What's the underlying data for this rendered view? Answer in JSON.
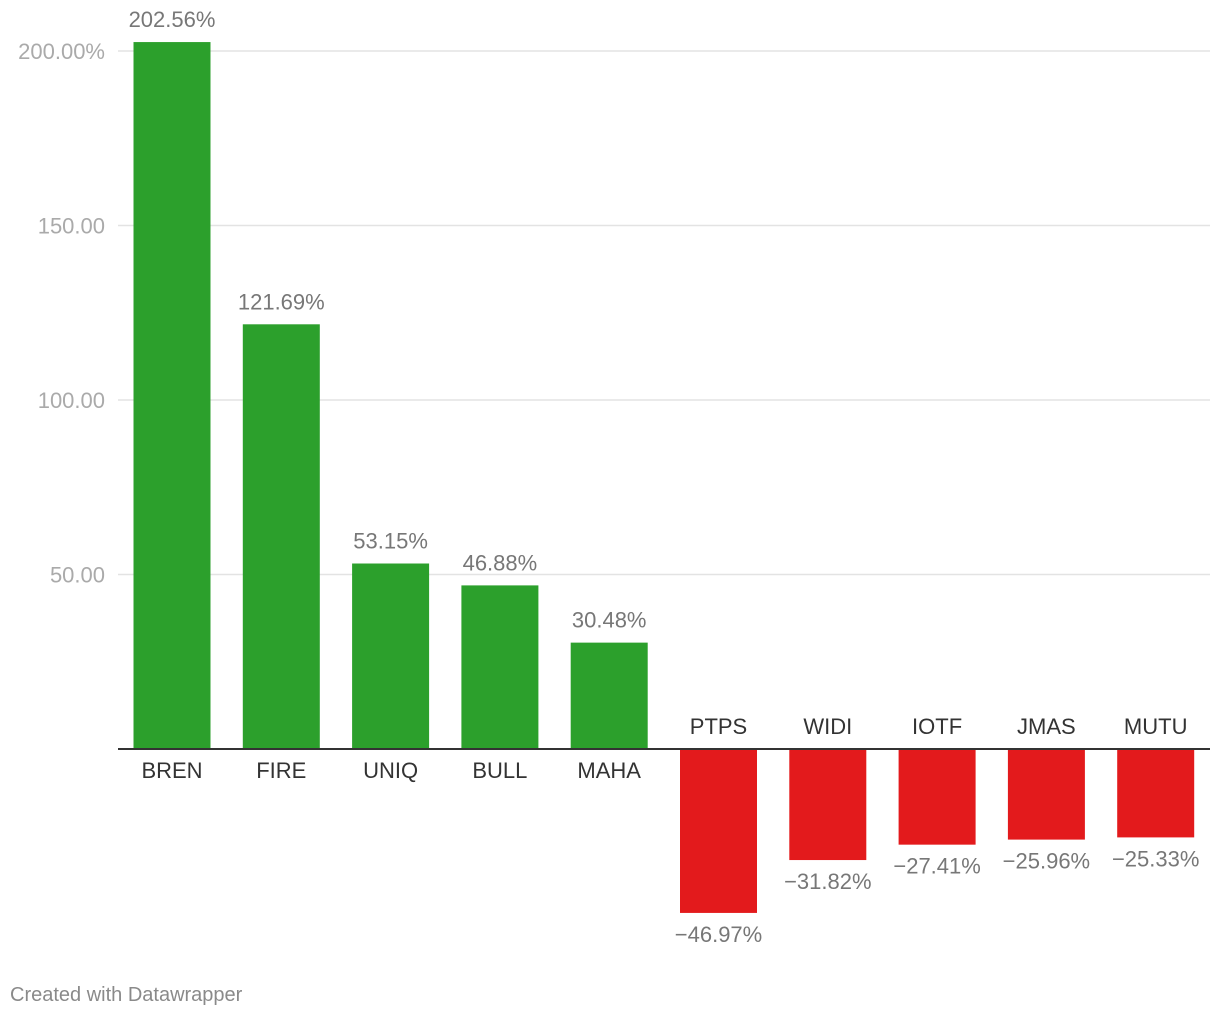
{
  "credit": "Created with Datawrapper",
  "colors": {
    "positive": "#2ca02c",
    "negative": "#e31a1c"
  },
  "chart_data": {
    "type": "bar",
    "categories": [
      "BREN",
      "FIRE",
      "UNIQ",
      "BULL",
      "MAHA",
      "PTPS",
      "WIDI",
      "IOTF",
      "JMAS",
      "MUTU"
    ],
    "values": [
      202.56,
      121.69,
      53.15,
      46.88,
      30.48,
      -46.97,
      -31.82,
      -27.41,
      -25.96,
      -25.33
    ],
    "value_labels": [
      "202.56%",
      "121.69%",
      "53.15%",
      "46.88%",
      "30.48%",
      "−46.97%",
      "−31.82%",
      "−27.41%",
      "−25.96%",
      "−25.33%"
    ],
    "y_ticks": [
      50,
      100,
      150,
      200
    ],
    "y_tick_labels": [
      "50.00",
      "100.00",
      "150.00",
      "200.00%"
    ],
    "ylim": [
      -46.97,
      202.56
    ],
    "title": "",
    "xlabel": "",
    "ylabel": "",
    "grid": true,
    "legend": "none"
  }
}
